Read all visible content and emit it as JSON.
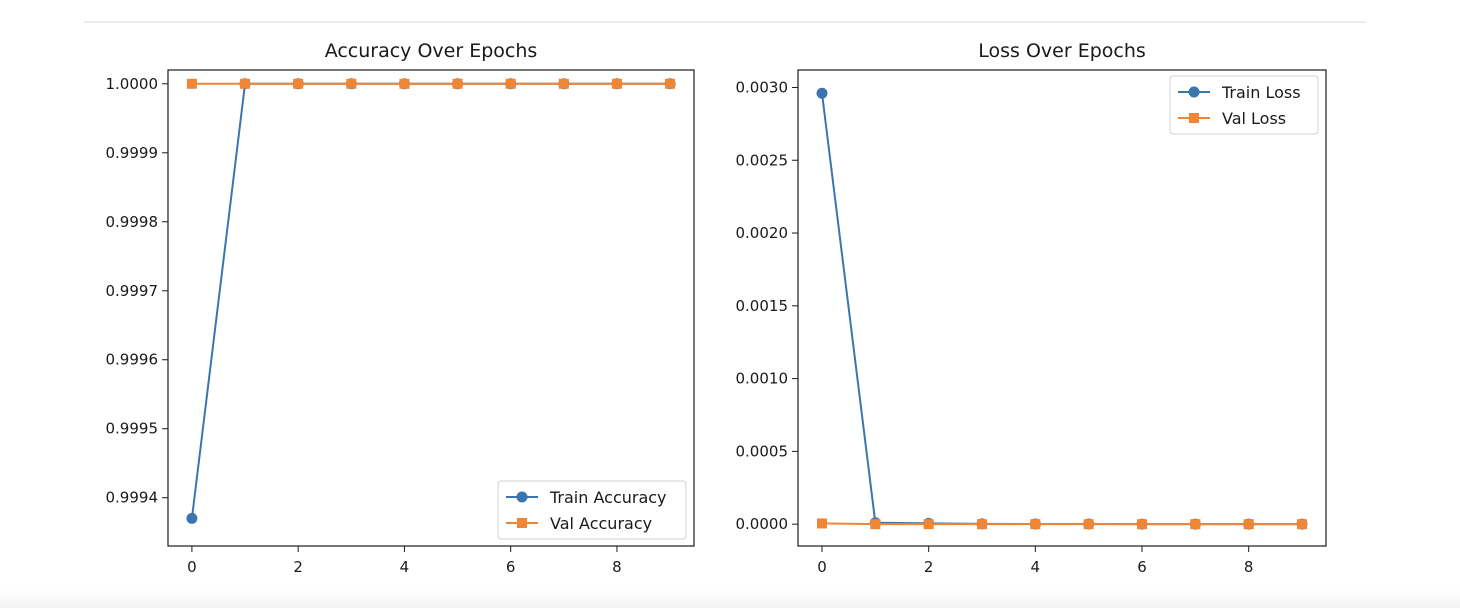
{
  "chart_data": [
    {
      "type": "line",
      "title": "Accuracy Over Epochs",
      "xlabel": "",
      "ylabel": "",
      "x": [
        0,
        1,
        2,
        3,
        4,
        5,
        6,
        7,
        8,
        9
      ],
      "xlim": [
        -0.45,
        9.45
      ],
      "ylim": [
        0.99933,
        1.00002
      ],
      "xticks": [
        0,
        2,
        4,
        6,
        8
      ],
      "xtick_labels": [
        "0",
        "2",
        "4",
        "6",
        "8"
      ],
      "yticks": [
        0.9994,
        0.9995,
        0.9996,
        0.9997,
        0.9998,
        0.9999,
        1.0
      ],
      "ytick_labels": [
        "0.9994",
        "0.9995",
        "0.9996",
        "0.9997",
        "0.9998",
        "0.9999",
        "1.0000"
      ],
      "grid": false,
      "legend_position": "lower-right",
      "series": [
        {
          "name": "Train Accuracy",
          "marker": "circle",
          "color": "#3a75ae",
          "values": [
            0.99937,
            1.0,
            1.0,
            1.0,
            1.0,
            1.0,
            1.0,
            1.0,
            1.0,
            1.0
          ]
        },
        {
          "name": "Val Accuracy",
          "marker": "square",
          "color": "#ef8636",
          "values": [
            1.0,
            1.0,
            1.0,
            1.0,
            1.0,
            1.0,
            1.0,
            1.0,
            1.0,
            1.0
          ]
        }
      ]
    },
    {
      "type": "line",
      "title": "Loss Over Epochs",
      "xlabel": "",
      "ylabel": "",
      "x": [
        0,
        1,
        2,
        3,
        4,
        5,
        6,
        7,
        8,
        9
      ],
      "xlim": [
        -0.45,
        9.45
      ],
      "ylim": [
        -0.00015,
        0.00312
      ],
      "xticks": [
        0,
        2,
        4,
        6,
        8
      ],
      "xtick_labels": [
        "0",
        "2",
        "4",
        "6",
        "8"
      ],
      "yticks": [
        0.0,
        0.0005,
        0.001,
        0.0015,
        0.002,
        0.0025,
        0.003
      ],
      "ytick_labels": [
        "0.0000",
        "0.0005",
        "0.0010",
        "0.0015",
        "0.0020",
        "0.0025",
        "0.0030"
      ],
      "grid": false,
      "legend_position": "upper-right",
      "series": [
        {
          "name": "Train Loss",
          "marker": "circle",
          "color": "#3a75ae",
          "values": [
            0.00296,
            1e-05,
            5e-06,
            2e-06,
            1e-06,
            1e-06,
            0.0,
            0.0,
            0.0,
            0.0
          ]
        },
        {
          "name": "Val Loss",
          "marker": "square",
          "color": "#ef8636",
          "values": [
            5e-06,
            0.0,
            0.0,
            0.0,
            0.0,
            0.0,
            0.0,
            0.0,
            0.0,
            0.0
          ]
        }
      ]
    }
  ]
}
